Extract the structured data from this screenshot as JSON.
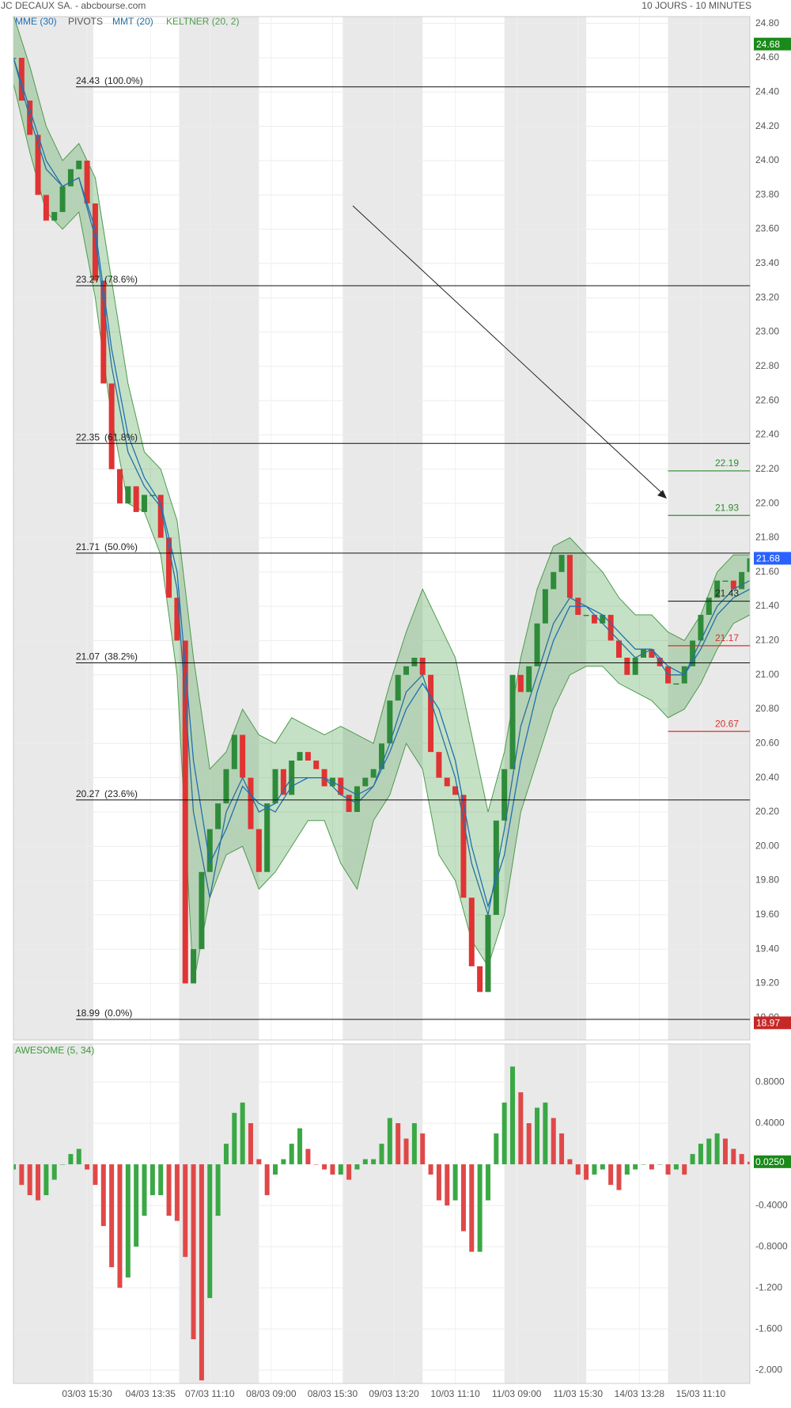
{
  "header": {
    "left": "JC DECAUX SA. - abcbourse.com",
    "right": "10 JOURS - 10 MINUTES"
  },
  "chart_data": [
    {
      "type": "stock",
      "xlim": [
        0,
        360
      ],
      "ylim": [
        18.87,
        24.84
      ],
      "grid": true,
      "shaded_ranges": [
        [
          0,
          39
        ],
        [
          81,
          120
        ],
        [
          161,
          200
        ],
        [
          240,
          280
        ],
        [
          320,
          360
        ]
      ],
      "up_color": "#2e8b3a",
      "down_color": "#e03333",
      "yticks": [
        {
          "value": 19,
          "label": "19.00"
        },
        {
          "value": 19.2,
          "label": "19.20"
        },
        {
          "value": 19.4,
          "label": "19.40"
        },
        {
          "value": 19.6,
          "label": "19.60"
        },
        {
          "value": 19.8,
          "label": "19.80"
        },
        {
          "value": 20,
          "label": "20.00"
        },
        {
          "value": 20.2,
          "label": "20.20"
        },
        {
          "value": 20.4,
          "label": "20.40"
        },
        {
          "value": 20.6,
          "label": "20.60"
        },
        {
          "value": 20.8,
          "label": "20.80"
        },
        {
          "value": 21,
          "label": "21.00"
        },
        {
          "value": 21.2,
          "label": "21.20"
        },
        {
          "value": 21.4,
          "label": "21.40"
        },
        {
          "value": 21.6,
          "label": "21.60"
        },
        {
          "value": 21.8,
          "label": "21.80"
        },
        {
          "value": 22,
          "label": "22.00"
        },
        {
          "value": 22.2,
          "label": "22.20"
        },
        {
          "value": 22.4,
          "label": "22.40"
        },
        {
          "value": 22.6,
          "label": "22.60"
        },
        {
          "value": 22.8,
          "label": "22.80"
        },
        {
          "value": 23,
          "label": "23.00"
        },
        {
          "value": 23.2,
          "label": "23.20"
        },
        {
          "value": 23.4,
          "label": "23.40"
        },
        {
          "value": 23.6,
          "label": "23.60"
        },
        {
          "value": 23.8,
          "label": "23.80"
        },
        {
          "value": 24,
          "label": "24.00"
        },
        {
          "value": 24.2,
          "label": "24.20"
        },
        {
          "value": 24.4,
          "label": "24.40"
        },
        {
          "value": 24.6,
          "label": "24.60"
        },
        {
          "value": 24.8,
          "label": "24.80"
        }
      ],
      "x": [
        0,
        4,
        8,
        12,
        16,
        20,
        24,
        28,
        32,
        36,
        40,
        44,
        48,
        52,
        56,
        60,
        64,
        68,
        72,
        76,
        80,
        84,
        88,
        92,
        96,
        100,
        104,
        108,
        112,
        116,
        120,
        124,
        128,
        132,
        136,
        140,
        144,
        148,
        152,
        156,
        160,
        164,
        168,
        172,
        176,
        180,
        184,
        188,
        192,
        196,
        200,
        204,
        208,
        212,
        216,
        220,
        224,
        228,
        232,
        236,
        240,
        244,
        248,
        252,
        256,
        260,
        264,
        268,
        272,
        276,
        280,
        284,
        288,
        292,
        296,
        300,
        304,
        308,
        312,
        316,
        320,
        324,
        328,
        332,
        336,
        340,
        344,
        348,
        352,
        356,
        360
      ],
      "values": [
        24.6,
        24.35,
        24.15,
        23.8,
        23.65,
        23.7,
        23.85,
        23.95,
        24.0,
        23.75,
        23.3,
        22.7,
        22.2,
        22.0,
        22.1,
        21.95,
        22.05,
        22.05,
        21.8,
        21.45,
        21.2,
        19.2,
        19.4,
        19.85,
        20.1,
        20.25,
        20.45,
        20.65,
        20.4,
        20.1,
        19.85,
        20.25,
        20.45,
        20.3,
        20.5,
        20.55,
        20.5,
        20.45,
        20.35,
        20.4,
        20.3,
        20.2,
        20.35,
        20.4,
        20.45,
        20.6,
        20.85,
        21.0,
        21.05,
        21.1,
        21.0,
        20.55,
        20.4,
        20.35,
        20.3,
        19.7,
        19.3,
        19.15,
        19.6,
        20.15,
        20.45,
        21.0,
        20.9,
        21.05,
        21.3,
        21.5,
        21.6,
        21.7,
        21.45,
        21.35,
        21.35,
        21.3,
        21.35,
        21.2,
        21.1,
        21.0,
        21.1,
        21.15,
        21.1,
        21.05,
        20.95,
        20.95,
        21.05,
        21.2,
        21.35,
        21.45,
        21.55,
        21.55,
        21.5,
        21.6,
        21.68
      ],
      "indicators": [
        {
          "name": "MME (30)",
          "color": "#1f6fb5",
          "x": [
            0,
            8,
            16,
            24,
            32,
            40,
            48,
            56,
            64,
            72,
            80,
            88,
            96,
            104,
            112,
            120,
            128,
            136,
            144,
            152,
            160,
            168,
            176,
            184,
            192,
            200,
            208,
            216,
            224,
            232,
            240,
            248,
            256,
            264,
            272,
            280,
            288,
            296,
            304,
            312,
            320,
            328,
            336,
            344,
            352,
            360
          ],
          "values": [
            24.6,
            24.3,
            24.0,
            23.85,
            23.9,
            23.6,
            22.9,
            22.4,
            22.15,
            22.0,
            21.6,
            20.5,
            19.9,
            20.1,
            20.35,
            20.25,
            20.2,
            20.35,
            20.4,
            20.4,
            20.35,
            20.3,
            20.35,
            20.55,
            20.8,
            20.95,
            20.8,
            20.5,
            20.0,
            19.65,
            19.95,
            20.5,
            20.9,
            21.2,
            21.4,
            21.4,
            21.35,
            21.25,
            21.15,
            21.15,
            21.05,
            21.0,
            21.15,
            21.35,
            21.45,
            21.5
          ]
        },
        {
          "name": "PIVOTS",
          "color": "#555555",
          "levels": [
            {
              "value": 22.19,
              "color": "#2e8b2e"
            },
            {
              "value": 21.93,
              "color": "#2e8b2e"
            },
            {
              "value": 21.43,
              "color": "#222222"
            },
            {
              "value": 21.17,
              "color": "#d93030"
            },
            {
              "value": 20.67,
              "color": "#d93030"
            }
          ]
        },
        {
          "name": "MMT (20)",
          "color": "#2a6f9e",
          "x": [
            0,
            8,
            16,
            24,
            32,
            40,
            48,
            56,
            64,
            72,
            80,
            88,
            96,
            104,
            112,
            120,
            128,
            136,
            144,
            152,
            160,
            168,
            176,
            184,
            192,
            200,
            208,
            216,
            224,
            232,
            240,
            248,
            256,
            264,
            272,
            280,
            288,
            296,
            304,
            312,
            320,
            328,
            336,
            344,
            352,
            360
          ],
          "values": [
            24.6,
            24.25,
            23.95,
            23.85,
            23.9,
            23.55,
            22.8,
            22.3,
            22.1,
            21.98,
            21.5,
            20.2,
            19.7,
            20.2,
            20.4,
            20.2,
            20.25,
            20.4,
            20.4,
            20.4,
            20.3,
            20.25,
            20.35,
            20.6,
            20.9,
            21.0,
            20.7,
            20.4,
            19.9,
            19.6,
            20.1,
            20.7,
            21.0,
            21.3,
            21.45,
            21.4,
            21.3,
            21.2,
            21.1,
            21.15,
            21.0,
            21.0,
            21.2,
            21.4,
            21.5,
            21.55
          ]
        },
        {
          "name": "KELTNER (20, 2)",
          "color": "#4e9a4e",
          "fill": "rgba(80,165,80,0.33)",
          "x": [
            0,
            8,
            16,
            24,
            32,
            40,
            48,
            56,
            64,
            72,
            80,
            88,
            96,
            104,
            112,
            120,
            128,
            136,
            144,
            152,
            160,
            168,
            176,
            184,
            192,
            200,
            208,
            216,
            224,
            232,
            240,
            248,
            256,
            264,
            272,
            280,
            288,
            296,
            304,
            312,
            320,
            328,
            336,
            344,
            352,
            360
          ],
          "upper": [
            24.85,
            24.55,
            24.2,
            24.0,
            24.1,
            23.9,
            23.3,
            22.7,
            22.3,
            22.2,
            21.9,
            21.1,
            20.45,
            20.55,
            20.8,
            20.65,
            20.6,
            20.75,
            20.7,
            20.65,
            20.7,
            20.65,
            20.6,
            20.95,
            21.25,
            21.5,
            21.3,
            21.1,
            20.65,
            20.2,
            20.55,
            21.1,
            21.5,
            21.75,
            21.8,
            21.7,
            21.6,
            21.45,
            21.35,
            21.35,
            21.25,
            21.2,
            21.35,
            21.6,
            21.7,
            21.7
          ],
          "lower": [
            24.45,
            24.05,
            23.7,
            23.6,
            23.7,
            23.2,
            22.5,
            22.0,
            21.95,
            21.7,
            21.0,
            19.2,
            19.7,
            19.95,
            20.0,
            19.75,
            19.85,
            20.0,
            20.15,
            20.15,
            19.9,
            19.75,
            20.15,
            20.3,
            20.6,
            20.45,
            19.95,
            19.8,
            19.45,
            19.3,
            19.6,
            20.2,
            20.5,
            20.8,
            21.0,
            21.05,
            21.05,
            20.95,
            20.9,
            20.85,
            20.75,
            20.8,
            20.95,
            21.15,
            21.3,
            21.35
          ]
        }
      ],
      "fibonacci": [
        {
          "value": 24.43,
          "label": "(100.0%)"
        },
        {
          "value": 23.27,
          "label": "(78.6%)"
        },
        {
          "value": 22.35,
          "label": "(61.8%)"
        },
        {
          "value": 21.71,
          "label": "(50.0%)"
        },
        {
          "value": 21.07,
          "label": "(38.2%)"
        },
        {
          "value": 20.27,
          "label": "(23.6%)"
        },
        {
          "value": 18.99,
          "label": "(0.0%)"
        }
      ],
      "tags": [
        {
          "value": 24.68,
          "color": "#1a8a1a"
        },
        {
          "value": 21.68,
          "color": "#2962ff"
        },
        {
          "value": 18.97,
          "color": "#c62828"
        }
      ]
    },
    {
      "type": "bar",
      "title": "AWESOME (5, 34)",
      "title_color": "#3a9a3a",
      "xlim": [
        0,
        360
      ],
      "ylim": [
        -2.13,
        1.17
      ],
      "up_color": "#3aa845",
      "down_color": "#e04848",
      "yticks": [
        {
          "value": 0.8,
          "label": "0.8000"
        },
        {
          "value": 0.4,
          "label": "0.4000"
        },
        {
          "value": -0.4,
          "label": "-0.4000"
        },
        {
          "value": -0.8,
          "label": "-0.8000"
        },
        {
          "value": -1.2,
          "label": "-1.200"
        },
        {
          "value": -1.6,
          "label": "-1.600"
        },
        {
          "value": -2,
          "label": "-2.000"
        }
      ],
      "xticks": [
        {
          "value": 36,
          "label": "03/03 15:30"
        },
        {
          "value": 67,
          "label": "04/03 13:35"
        },
        {
          "value": 96,
          "label": "07/03 11:10"
        },
        {
          "value": 126,
          "label": "08/03 09:00"
        },
        {
          "value": 156,
          "label": "08/03 15:30"
        },
        {
          "value": 186,
          "label": "09/03 13:20"
        },
        {
          "value": 216,
          "label": "10/03 11:10"
        },
        {
          "value": 246,
          "label": "11/03 09:00"
        },
        {
          "value": 276,
          "label": "11/03 15:30"
        },
        {
          "value": 306,
          "label": "14/03 13:28"
        },
        {
          "value": 336,
          "label": "15/03 11:10"
        }
      ],
      "x": [
        0,
        4,
        8,
        12,
        16,
        20,
        24,
        28,
        32,
        36,
        40,
        44,
        48,
        52,
        56,
        60,
        64,
        68,
        72,
        76,
        80,
        84,
        88,
        92,
        96,
        100,
        104,
        108,
        112,
        116,
        120,
        124,
        128,
        132,
        136,
        140,
        144,
        148,
        152,
        156,
        160,
        164,
        168,
        172,
        176,
        180,
        184,
        188,
        192,
        196,
        200,
        204,
        208,
        212,
        216,
        220,
        224,
        228,
        232,
        236,
        240,
        244,
        248,
        252,
        256,
        260,
        264,
        268,
        272,
        276,
        280,
        284,
        288,
        292,
        296,
        300,
        304,
        308,
        312,
        316,
        320,
        324,
        328,
        332,
        336,
        340,
        344,
        348,
        352,
        356,
        360
      ],
      "values": [
        -0.05,
        -0.2,
        -0.3,
        -0.35,
        -0.3,
        -0.15,
        0,
        0.1,
        0.15,
        -0.05,
        -0.2,
        -0.6,
        -1.0,
        -1.2,
        -1.1,
        -0.8,
        -0.5,
        -0.3,
        -0.3,
        -0.5,
        -0.55,
        -0.9,
        -1.7,
        -2.1,
        -1.3,
        -0.5,
        0.2,
        0.5,
        0.6,
        0.4,
        0.05,
        -0.3,
        -0.1,
        0.05,
        0.2,
        0.35,
        0.15,
        0,
        -0.05,
        -0.1,
        -0.1,
        -0.15,
        -0.05,
        0.05,
        0.05,
        0.2,
        0.45,
        0.4,
        0.25,
        0.4,
        0.3,
        -0.1,
        -0.35,
        -0.4,
        -0.35,
        -0.65,
        -0.85,
        -0.85,
        -0.35,
        0.3,
        0.6,
        0.95,
        0.7,
        0.4,
        0.55,
        0.6,
        0.45,
        0.3,
        0.05,
        -0.1,
        -0.15,
        -0.1,
        -0.05,
        -0.2,
        -0.25,
        -0.1,
        -0.05,
        0,
        -0.05,
        0,
        -0.1,
        -0.05,
        -0.1,
        0.1,
        0.2,
        0.25,
        0.3,
        0.25,
        0.15,
        0.1,
        0.025
      ],
      "tag": {
        "value": 0.025,
        "label": "0.0250",
        "color": "#1a8a1a"
      }
    }
  ]
}
